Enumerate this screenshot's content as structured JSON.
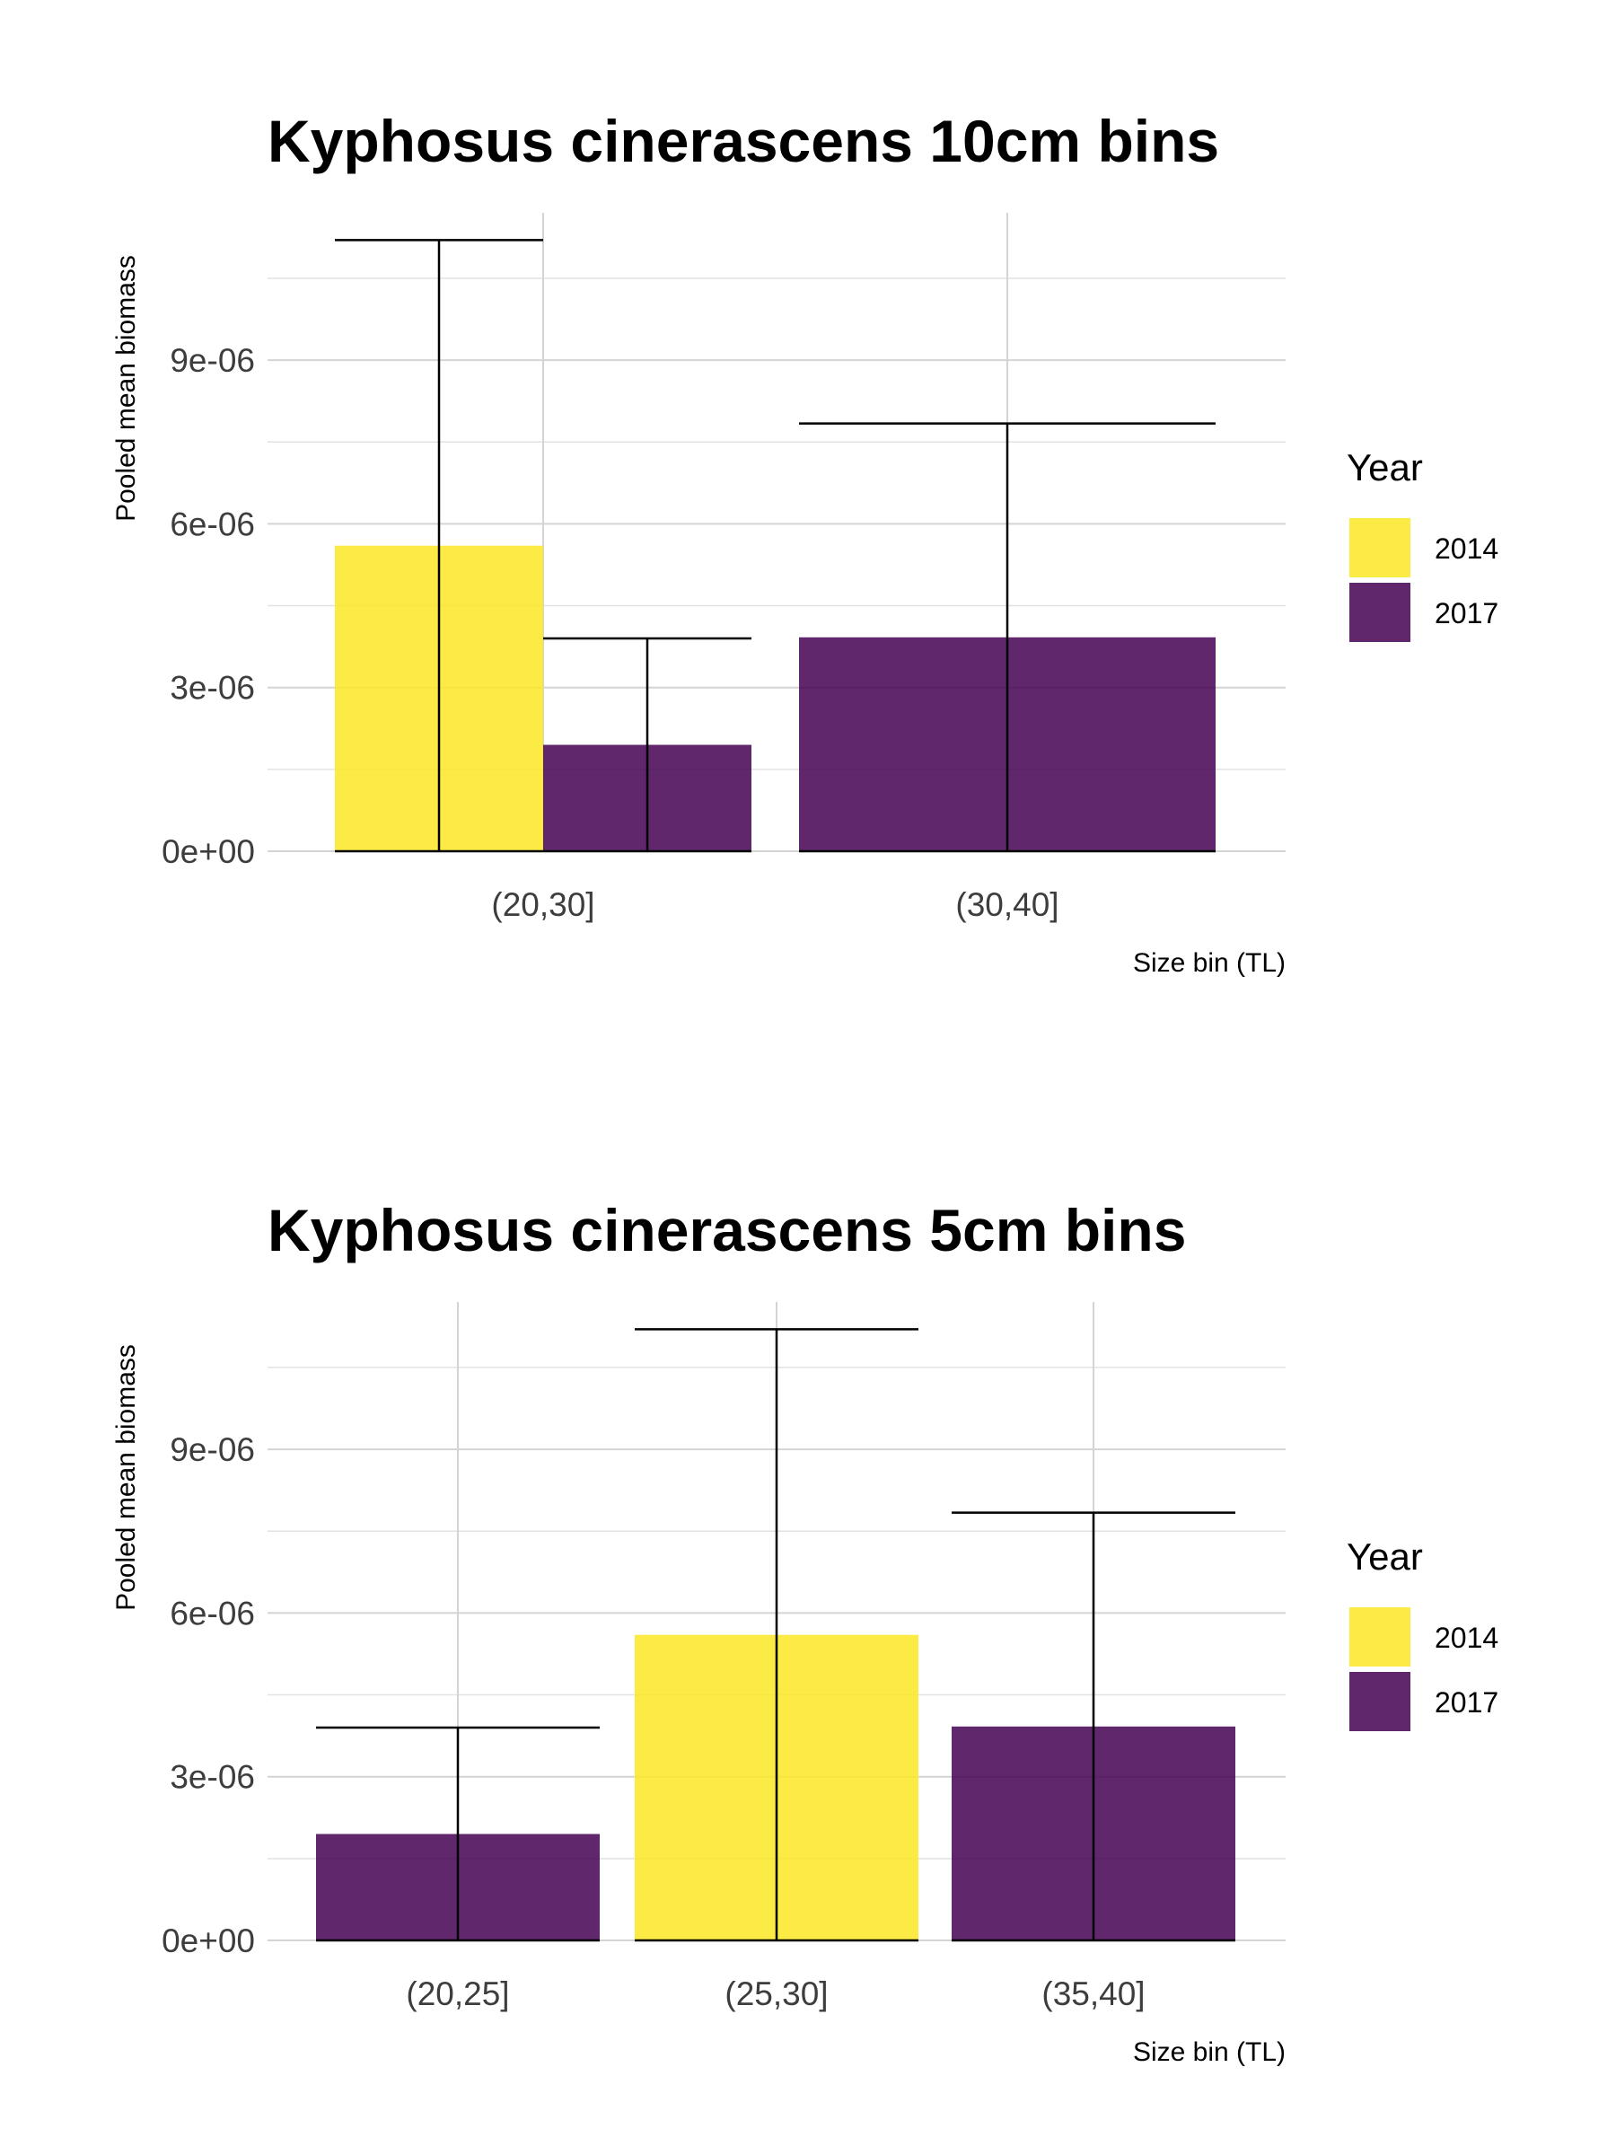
{
  "colors": {
    "2014": "#FDE725",
    "2017": "#440154",
    "bar_opacity": 0.85
  },
  "chart_data": [
    {
      "type": "bar",
      "title": "Kyphosus cinerascens 10cm bins",
      "xlabel": "Size bin (TL)",
      "ylabel": "Pooled mean biomass",
      "categories": [
        "(20,30]",
        "(30,40]"
      ],
      "yticks": [
        "0e+00",
        "3e-06",
        "6e-06",
        "9e-06"
      ],
      "ytick_values": [
        0,
        3e-06,
        6e-06,
        9e-06
      ],
      "ylim": [
        0,
        1.17e-05
      ],
      "grid": true,
      "legend": {
        "title": "Year",
        "position": "right",
        "entries": [
          "2014",
          "2017"
        ]
      },
      "bars": [
        {
          "category": "(20,30]",
          "year": "2014",
          "value": 5.6e-06,
          "error_upper": 1.12e-05,
          "error_lower": 0,
          "dodge": "left"
        },
        {
          "category": "(20,30]",
          "year": "2017",
          "value": 1.95e-06,
          "error_upper": 3.9e-06,
          "error_lower": 0,
          "dodge": "right"
        },
        {
          "category": "(30,40]",
          "year": "2017",
          "value": 3.92e-06,
          "error_upper": 7.84e-06,
          "error_lower": 0,
          "dodge": "full"
        }
      ]
    },
    {
      "type": "bar",
      "title": "Kyphosus cinerascens 5cm bins",
      "xlabel": "Size bin (TL)",
      "ylabel": "Pooled mean biomass",
      "categories": [
        "(20,25]",
        "(25,30]",
        "(35,40]"
      ],
      "yticks": [
        "0e+00",
        "3e-06",
        "6e-06",
        "9e-06"
      ],
      "ytick_values": [
        0,
        3e-06,
        6e-06,
        9e-06
      ],
      "ylim": [
        0,
        1.17e-05
      ],
      "grid": true,
      "legend": {
        "title": "Year",
        "position": "right",
        "entries": [
          "2014",
          "2017"
        ]
      },
      "bars": [
        {
          "category": "(20,25]",
          "year": "2017",
          "value": 1.95e-06,
          "error_upper": 3.9e-06,
          "error_lower": 0,
          "dodge": "full"
        },
        {
          "category": "(25,30]",
          "year": "2014",
          "value": 5.6e-06,
          "error_upper": 1.12e-05,
          "error_lower": 0,
          "dodge": "full"
        },
        {
          "category": "(35,40]",
          "year": "2017",
          "value": 3.92e-06,
          "error_upper": 7.84e-06,
          "error_lower": 0,
          "dodge": "full"
        }
      ]
    }
  ]
}
